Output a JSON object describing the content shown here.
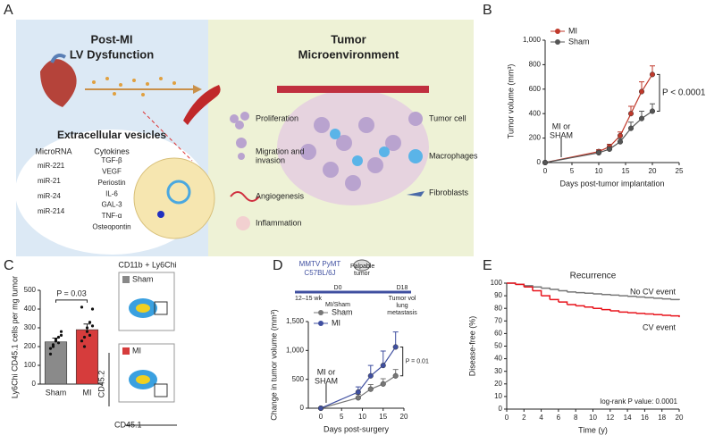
{
  "panel_labels": [
    "A",
    "B",
    "C",
    "D",
    "E"
  ],
  "diagram": {
    "left_title": [
      "Post-MI",
      "LV Dysfunction"
    ],
    "right_title": [
      "Tumor",
      "Microenvironment"
    ],
    "ev_title": "Extracellular vesicles",
    "mirna_header": "MicroRNA",
    "cytokine_header": "Cytokines",
    "mirnas": [
      "miR-221",
      "miR-21",
      "miR-24",
      "miR-214"
    ],
    "cytokines": [
      "TGF-β",
      "VEGF",
      "Periostin",
      "IL-6",
      "GAL-3",
      "TNF-α",
      "Osteopontin"
    ],
    "processes": [
      [
        "Proliferation"
      ],
      [
        "Migration and",
        "invasion"
      ],
      [
        "Angiogenesis"
      ],
      [
        "Inflammation"
      ]
    ],
    "legend": [
      "Tumor cell",
      "Macrophages",
      "Fibroblasts"
    ]
  },
  "flow": {
    "title": "CD11b + Ly6Chi",
    "groups": [
      "Sham",
      "MI"
    ],
    "ylabel": "CD45.2",
    "xlabel": "CD45.1"
  },
  "timeline": {
    "model": [
      "MMTV PyMT",
      "C57BL/6J"
    ],
    "palpable": [
      "Palpable",
      "tumor"
    ],
    "start": "D0",
    "end": "D18",
    "age": "12–15 wk",
    "surgery": "MI/Sham",
    "readout": [
      "Tumor vol",
      "lung",
      "metastasis"
    ]
  },
  "chart_data": [
    {
      "type": "line",
      "xlabel": "Days post-tumor implantation",
      "ylabel": "Tumor volume (mm³)",
      "x": [
        0,
        10,
        12,
        14,
        16,
        18,
        20
      ],
      "series": [
        {
          "name": "MI",
          "color": "#c0392b",
          "values": [
            0,
            90,
            130,
            220,
            400,
            580,
            720
          ],
          "errors": [
            0,
            15,
            20,
            30,
            60,
            80,
            70
          ]
        },
        {
          "name": "Sham",
          "color": "#555555",
          "values": [
            0,
            80,
            110,
            170,
            280,
            360,
            420
          ],
          "errors": [
            0,
            10,
            15,
            25,
            50,
            60,
            60
          ]
        }
      ],
      "xlim": [
        0,
        25
      ],
      "xticks": [
        0,
        5,
        10,
        15,
        20,
        25
      ],
      "ylim": [
        0,
        1000
      ],
      "yticks": [
        0,
        200,
        400,
        600,
        800,
        {
          "value": 1000,
          "label": "1,000"
        }
      ],
      "legend": "upper left",
      "annotation": "P < 0.0001",
      "arrow_label": [
        "MI or",
        "SHAM"
      ]
    },
    {
      "type": "bar",
      "ylabel": "Ly6Chi CD45.1 cells per mg tumor",
      "categories": [
        "Sham",
        "MI"
      ],
      "values": [
        225,
        290
      ],
      "errors": [
        20,
        30
      ],
      "points": [
        [
          190,
          210,
          230,
          250,
          280,
          160,
          200,
          240,
          220,
          260
        ],
        [
          230,
          250,
          300,
          330,
          400,
          410,
          200,
          280,
          260,
          310
        ]
      ],
      "colors": [
        "#8a8a8a",
        "#d63c3c"
      ],
      "ylim": [
        0,
        500
      ],
      "yticks": [
        0,
        100,
        200,
        300,
        400,
        500
      ],
      "annotation": "P = 0.03"
    },
    {
      "type": "line",
      "xlabel": "Days post-surgery",
      "ylabel": "Change in tumor volume (mm³)",
      "x": [
        0,
        9,
        12,
        15,
        18
      ],
      "series": [
        {
          "name": "Sham",
          "color": "#777777",
          "values": [
            0,
            180,
            330,
            420,
            560
          ],
          "errors": [
            0,
            60,
            80,
            90,
            110
          ]
        },
        {
          "name": "MI",
          "color": "#3f4fa0",
          "values": [
            0,
            280,
            560,
            740,
            1060
          ],
          "errors": [
            0,
            90,
            180,
            250,
            260
          ]
        }
      ],
      "xlim": [
        -3,
        20
      ],
      "xticks": [
        0,
        5,
        10,
        15,
        20
      ],
      "ylim": [
        0,
        1500
      ],
      "yticks": [
        0,
        500,
        {
          "value": 1000,
          "label": "1,000"
        },
        {
          "value": 1500,
          "label": "1,500"
        }
      ],
      "legend": "upper left",
      "annotation": "P = 0.01",
      "arrow_label": [
        "MI or",
        "SHAM"
      ]
    },
    {
      "type": "line",
      "step": true,
      "title": "Recurrence",
      "xlabel": "Time (y)",
      "ylabel": "Disease-free (%)",
      "x": [
        0,
        1,
        2,
        3,
        4,
        5,
        6,
        7,
        8,
        9,
        10,
        11,
        12,
        13,
        14,
        15,
        16,
        17,
        18,
        19,
        20
      ],
      "series": [
        {
          "name": "No CV event",
          "color": "#777777",
          "values": [
            100,
            99,
            98,
            97,
            96,
            95,
            94,
            93,
            92.5,
            92,
            91.5,
            91,
            90.5,
            90,
            89.5,
            89,
            88.5,
            88,
            87.5,
            87,
            86.5
          ]
        },
        {
          "name": "CV event",
          "color": "#e8141c",
          "values": [
            100,
            99,
            97,
            94,
            90,
            87,
            85,
            83,
            82,
            81,
            80,
            79,
            78,
            77,
            76.5,
            76,
            75.5,
            75,
            74.5,
            74,
            73
          ]
        }
      ],
      "xlim": [
        0,
        20
      ],
      "xticks": [
        0,
        2,
        4,
        6,
        8,
        10,
        12,
        14,
        16,
        18,
        20
      ],
      "ylim": [
        0,
        100
      ],
      "yticks": [
        0,
        10,
        20,
        30,
        40,
        50,
        60,
        70,
        80,
        90,
        100
      ],
      "annotation": "log-rank P value: 0.0001"
    }
  ]
}
